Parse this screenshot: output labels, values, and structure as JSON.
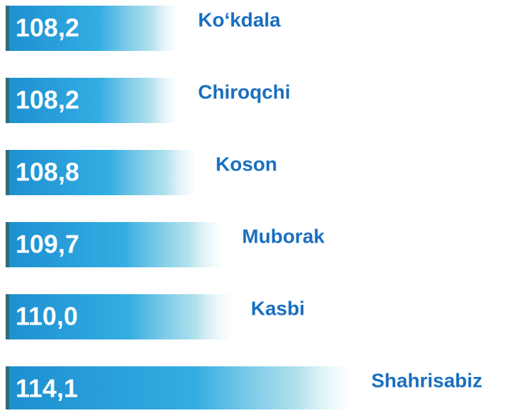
{
  "chart_data": {
    "type": "bar",
    "categories": [
      "Ko‘kdala",
      "Chiroqchi",
      "Koson",
      "Muborak",
      "Kasbi",
      "Shahrisabiz"
    ],
    "values": [
      108.2,
      108.2,
      108.8,
      109.7,
      110.0,
      114.1
    ],
    "value_labels": [
      "108,2",
      "108,2",
      "108,8",
      "109,7",
      "110,0",
      "114,1"
    ],
    "color": "#2aa6df"
  }
}
